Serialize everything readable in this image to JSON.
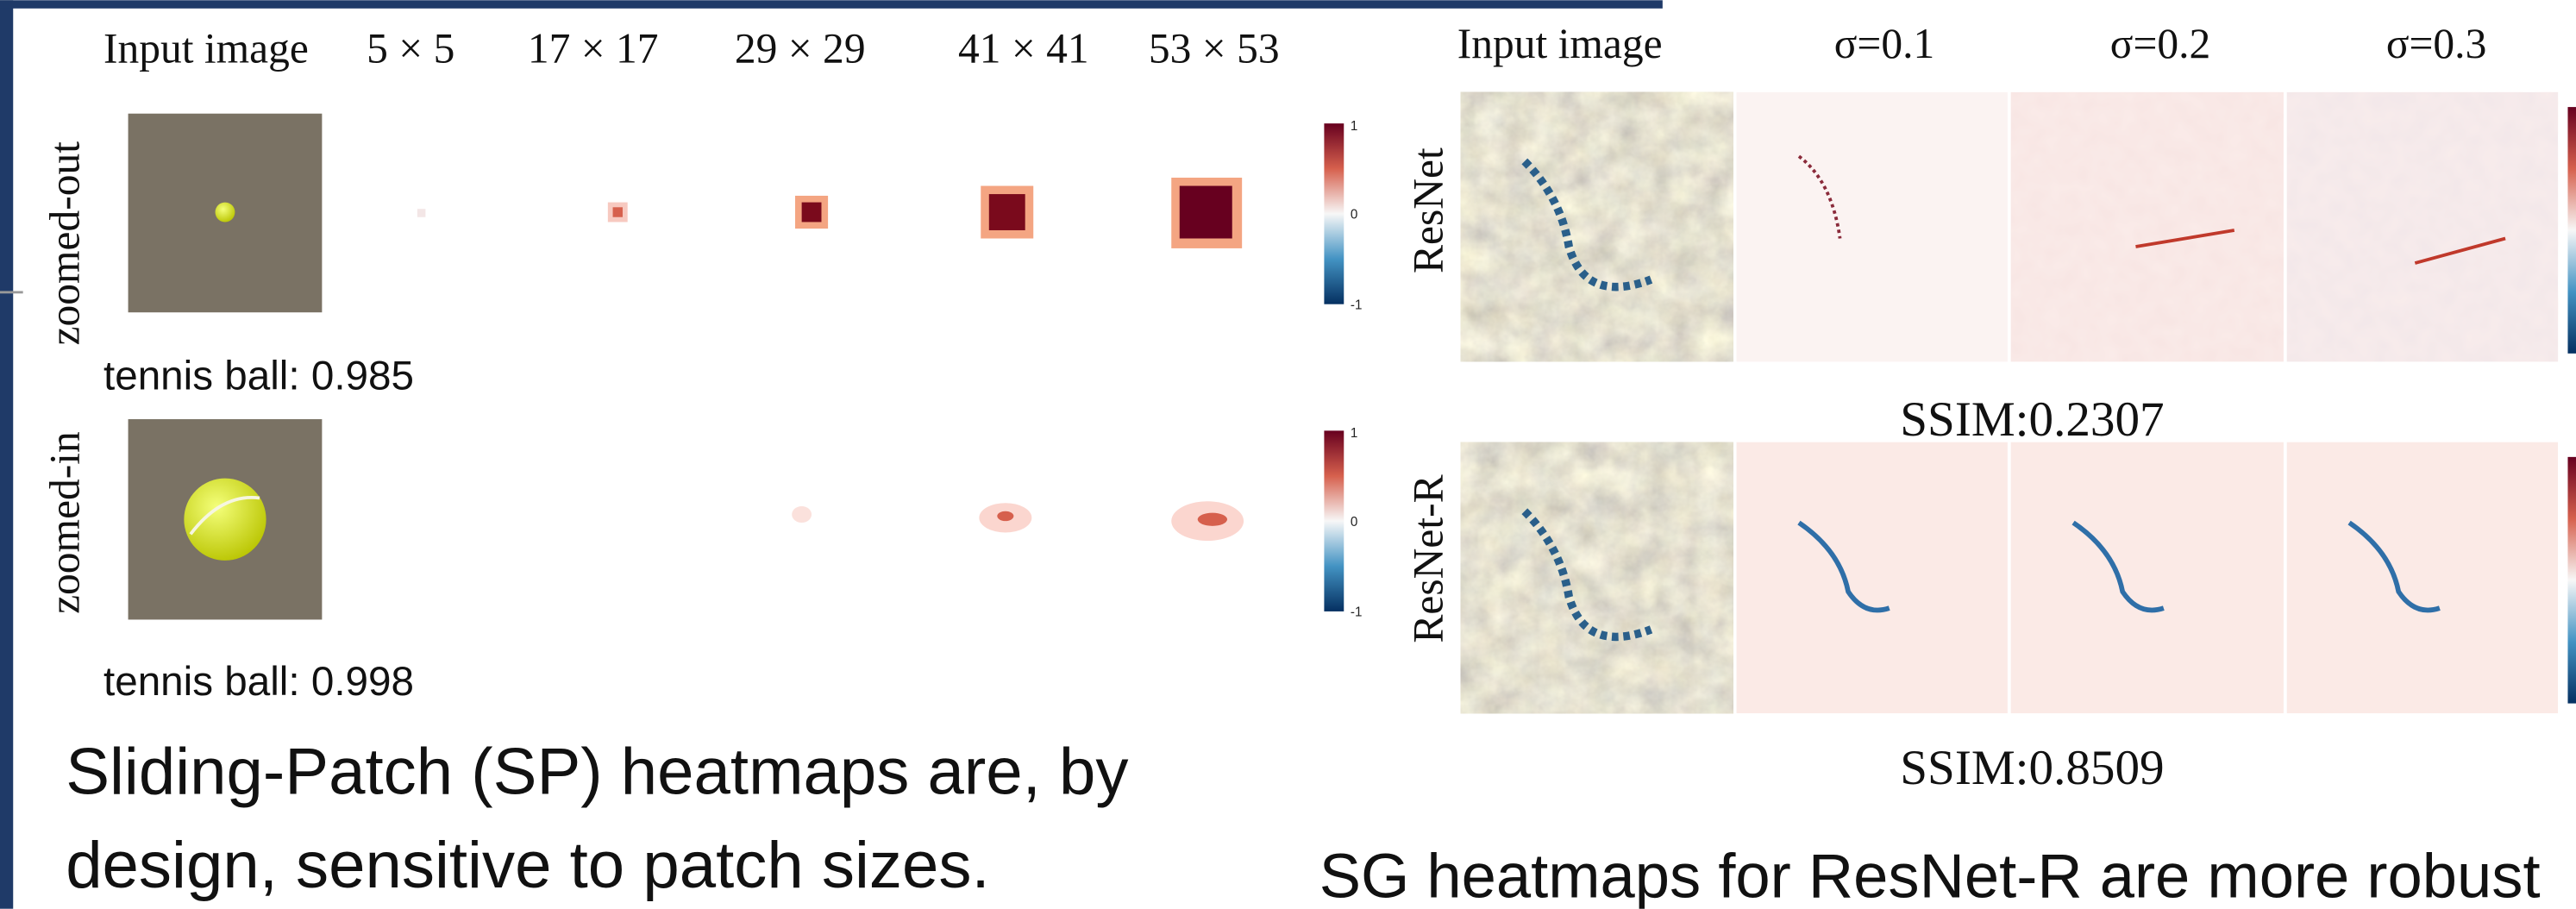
{
  "left_panel": {
    "column_headers": [
      "Input image",
      "5 × 5",
      "17 × 17",
      "29 × 29",
      "41 × 41",
      "53 × 53"
    ],
    "row_labels": [
      "zoomed-out",
      "zoomed-in"
    ],
    "predictions": [
      "tennis ball: 0.985",
      "tennis ball: 0.998"
    ],
    "colorbar_ticks": [
      [
        1,
        0,
        -1
      ],
      [
        1,
        0,
        -1
      ]
    ],
    "caption": [
      "Sliding-Patch (SP) heatmaps are, by",
      "design, sensitive to patch sizes."
    ]
  },
  "right_panel": {
    "column_headers": [
      "Input image",
      "σ=0.1",
      "σ=0.2",
      "σ=0.3"
    ],
    "row_labels": [
      "ResNet",
      "ResNet-R"
    ],
    "ssim": [
      "SSIM:0.2307",
      "SSIM:0.8509"
    ],
    "caption": "SG heatmaps for ResNet-R are more robust"
  }
}
